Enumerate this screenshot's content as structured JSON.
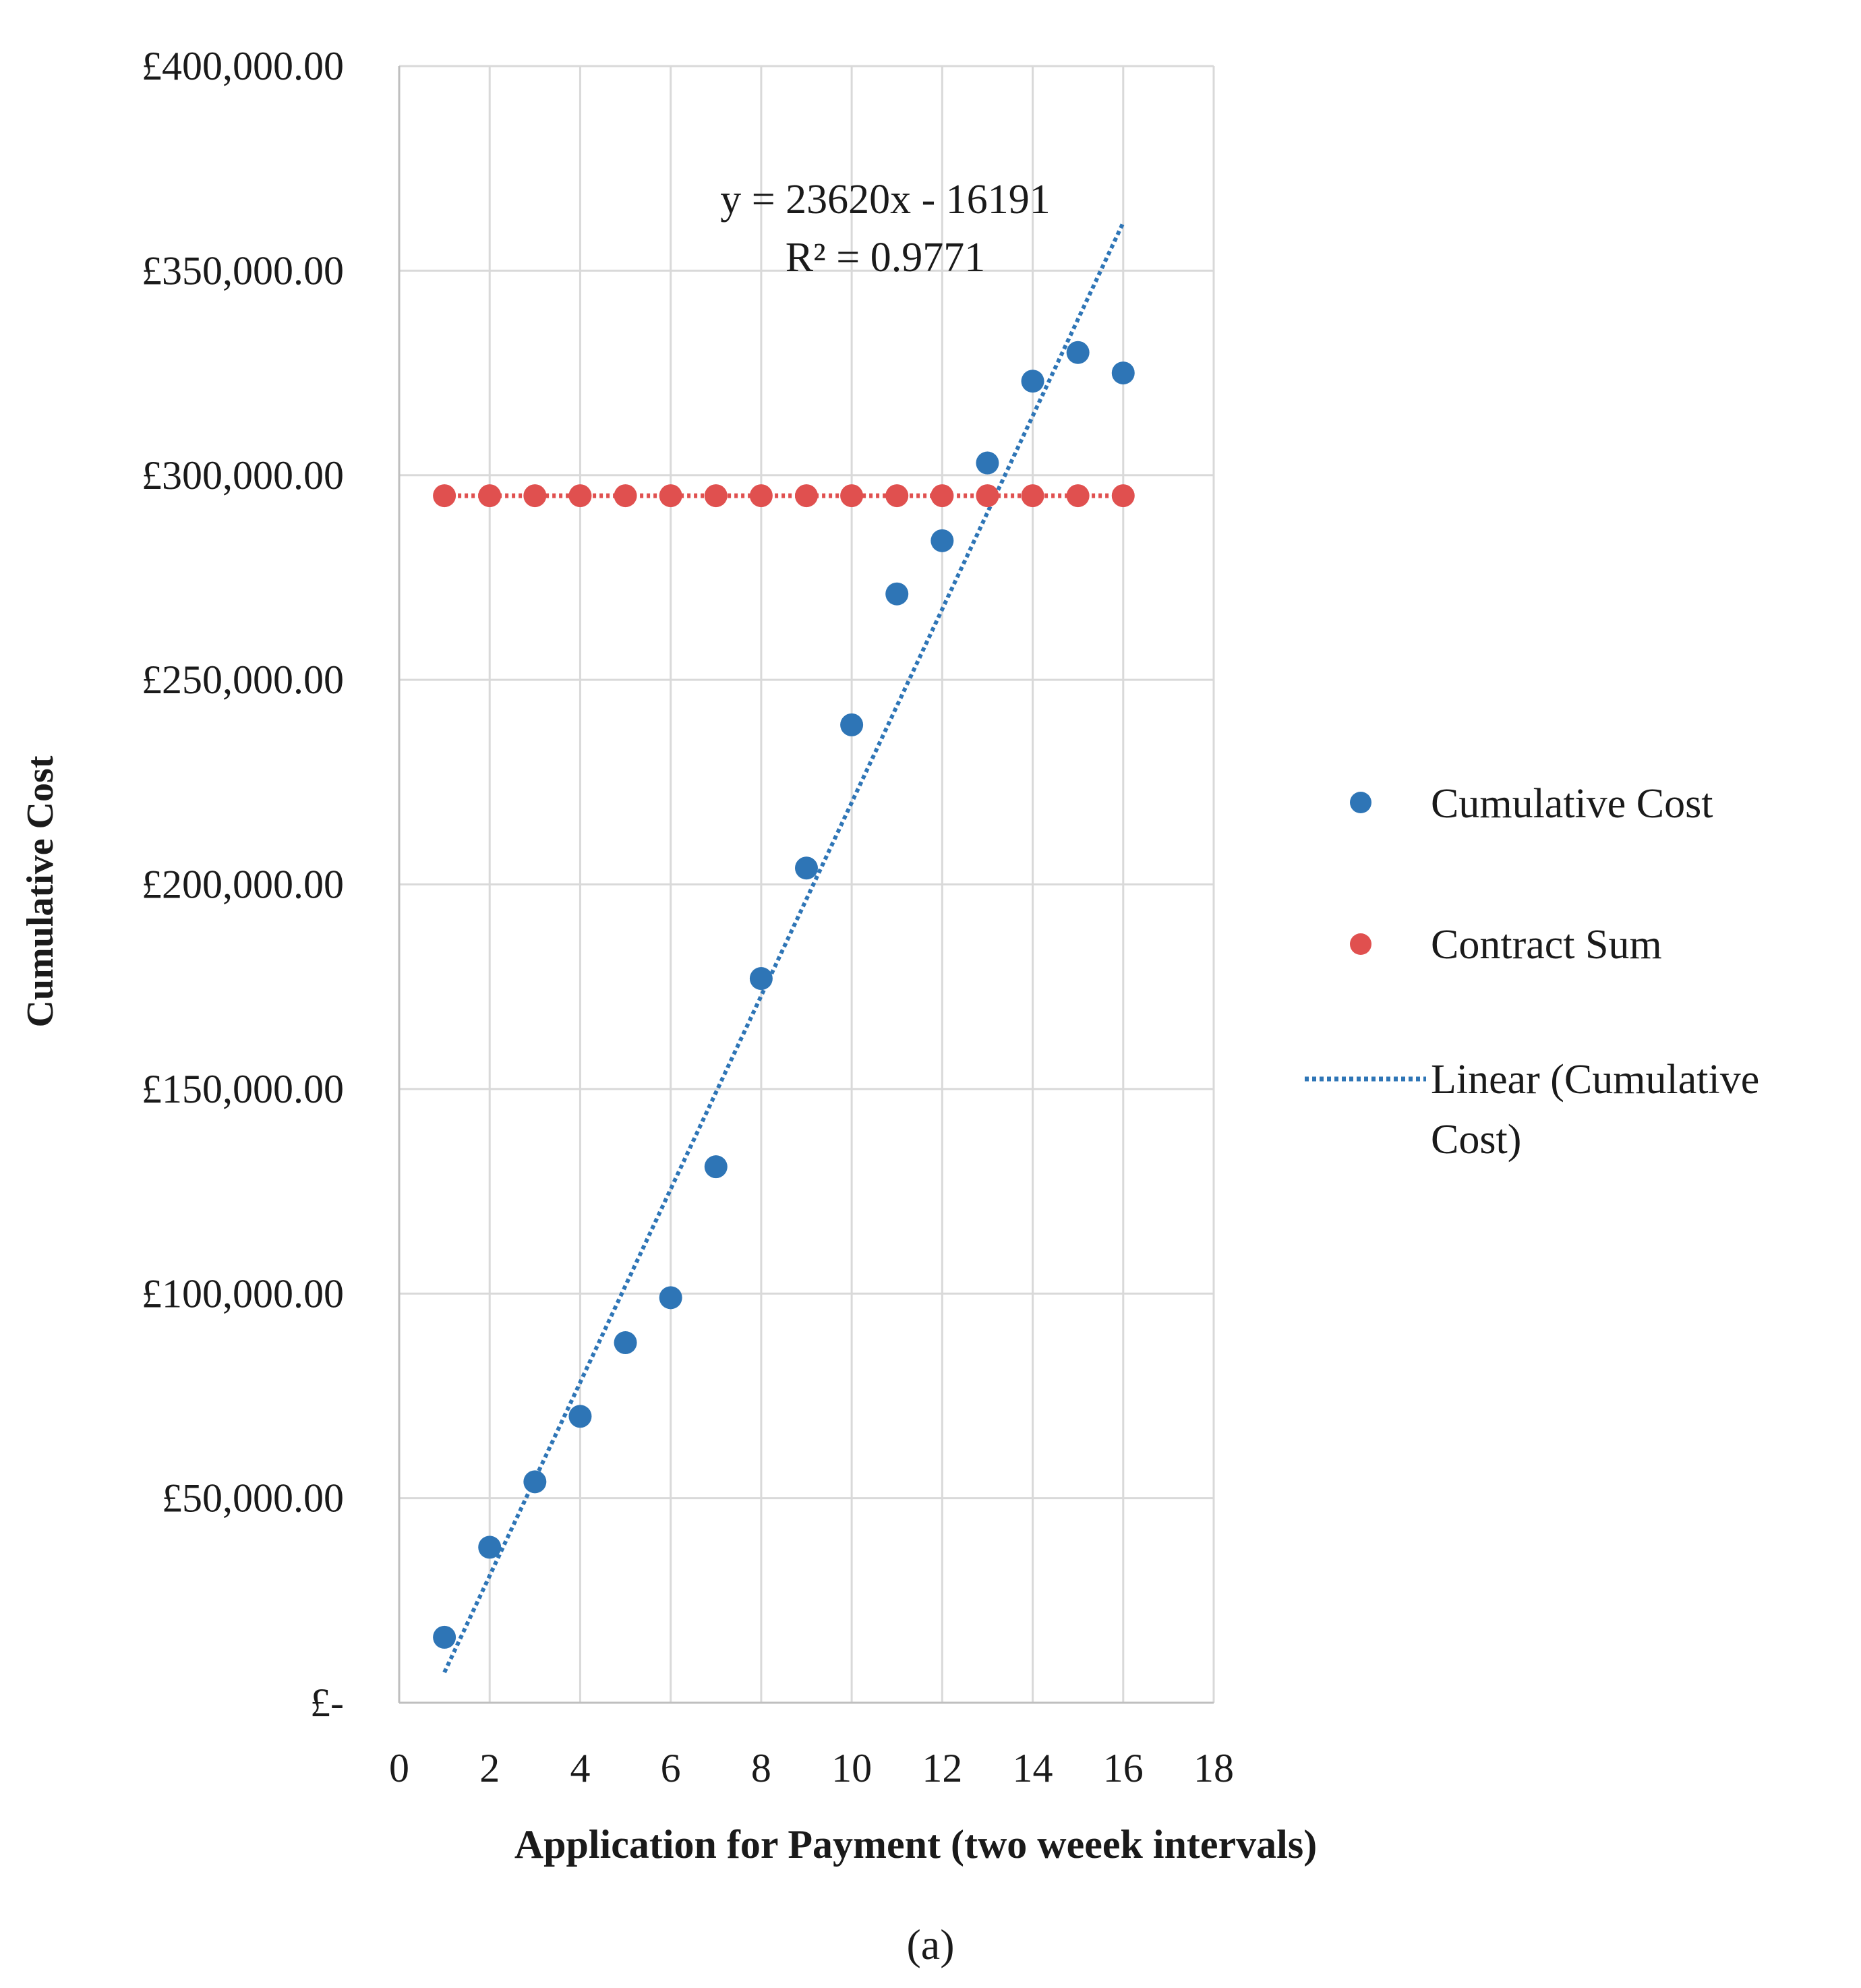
{
  "chart_data": {
    "type": "scatter",
    "title": "",
    "xlabel": "Application for Payment (two weeek intervals)",
    "ylabel": "Cumulative Cost",
    "xlim": [
      0,
      18
    ],
    "ylim": [
      0,
      400000
    ],
    "x_ticks": [
      0,
      2,
      4,
      6,
      8,
      10,
      12,
      14,
      16,
      18
    ],
    "x_tick_labels": [
      "0",
      "2",
      "4",
      "6",
      "8",
      "10",
      "12",
      "14",
      "16",
      "18"
    ],
    "y_ticks": [
      0,
      50000,
      100000,
      150000,
      200000,
      250000,
      300000,
      350000,
      400000
    ],
    "y_tick_labels": [
      "£-",
      "£50,000.00",
      "£100,000.00",
      "£150,000.00",
      "£200,000.00",
      "£250,000.00",
      "£300,000.00",
      "£350,000.00",
      "£400,000.00"
    ],
    "grid": true,
    "legend_position": "right",
    "series": [
      {
        "name": "Cumulative Cost",
        "kind": "scatter",
        "color": "#2e75b6",
        "x": [
          1,
          2,
          3,
          4,
          5,
          6,
          7,
          8,
          9,
          10,
          11,
          12,
          13,
          14,
          15,
          16
        ],
        "y": [
          16000,
          38000,
          54000,
          70000,
          88000,
          99000,
          131000,
          177000,
          204000,
          239000,
          271000,
          284000,
          303000,
          323000,
          330000,
          325000
        ]
      },
      {
        "name": "Contract Sum",
        "kind": "scatter-line",
        "color": "#e0504f",
        "x": [
          1,
          2,
          3,
          4,
          5,
          6,
          7,
          8,
          9,
          10,
          11,
          12,
          13,
          14,
          15,
          16
        ],
        "y": [
          295000,
          295000,
          295000,
          295000,
          295000,
          295000,
          295000,
          295000,
          295000,
          295000,
          295000,
          295000,
          295000,
          295000,
          295000,
          295000
        ]
      }
    ],
    "trendline": {
      "name": "Linear (Cumulative Cost)",
      "legend_line1": "Linear (Cumulative",
      "legend_line2": "Cost)",
      "color": "#2e75b6",
      "slope": 23620,
      "intercept": -16191,
      "x_range": [
        1,
        16
      ],
      "equation": "y = 23620x - 16191",
      "r_squared": "R² = 0.9771"
    },
    "caption": "(a)"
  }
}
